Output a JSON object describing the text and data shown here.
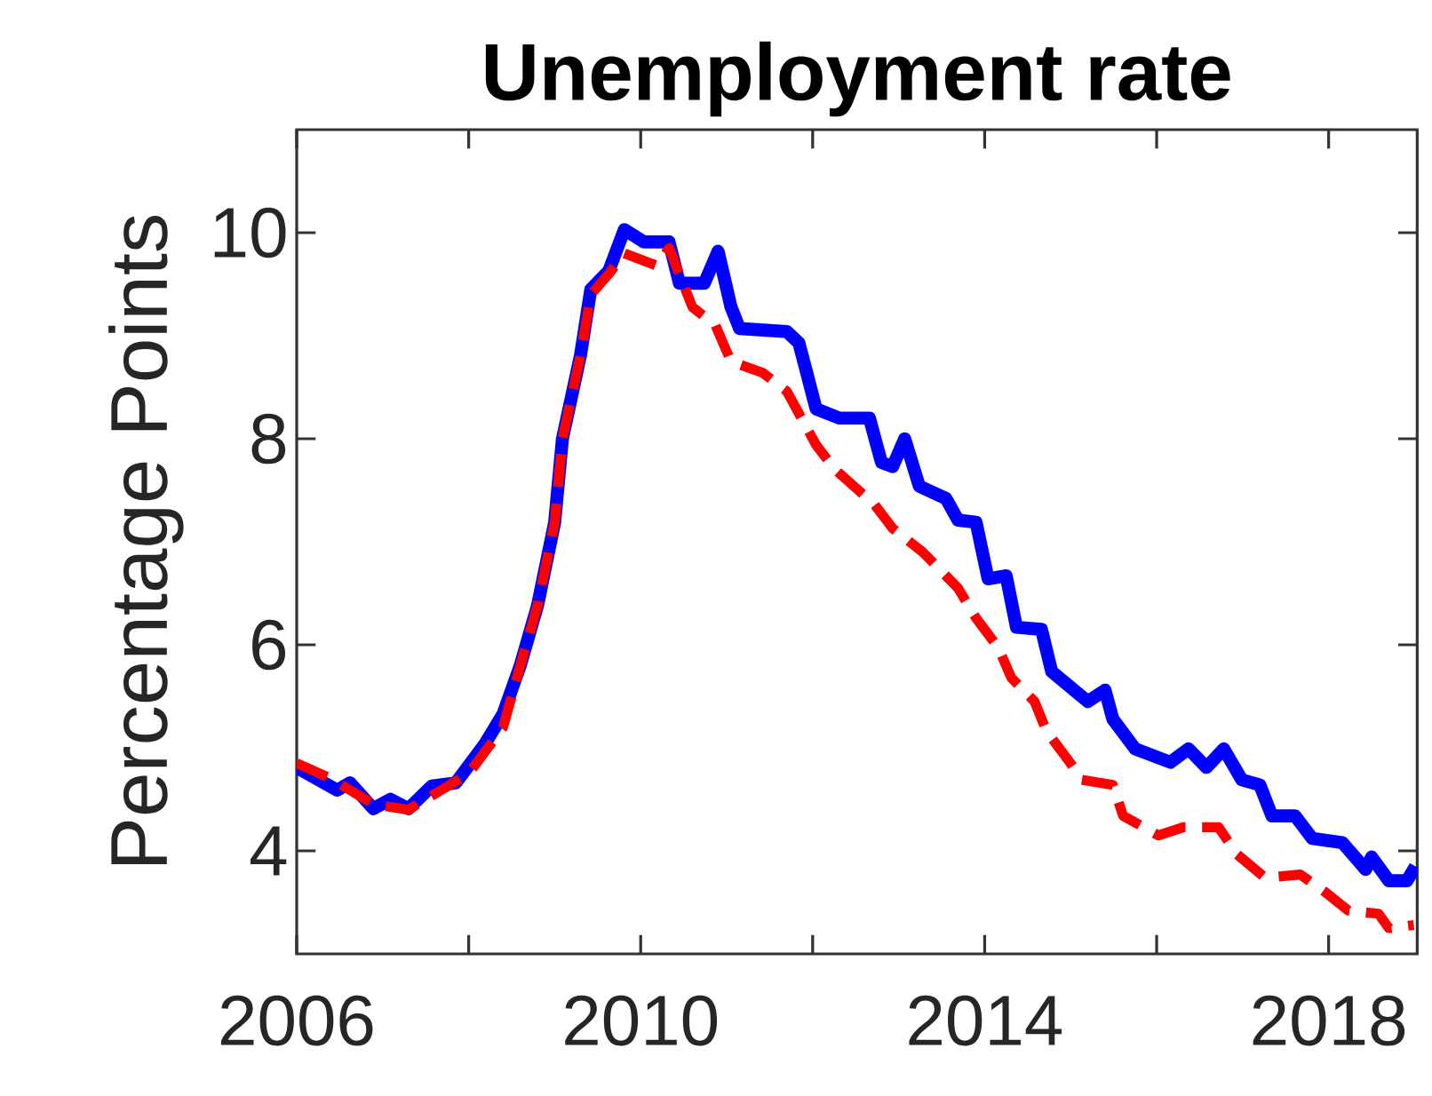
{
  "chart_data": {
    "type": "line",
    "title": "Unemployment rate",
    "ylabel": "Percentage Points",
    "xlim": [
      2006,
      2019.03
    ],
    "ylim": [
      3,
      11
    ],
    "xticks": [
      2006,
      {
        "value": 2008,
        "label": null
      },
      2010,
      {
        "value": 2012,
        "label": null
      },
      2014,
      {
        "value": 2016,
        "label": null
      },
      2018
    ],
    "yticks": [
      4,
      6,
      8,
      10
    ],
    "series": [
      {
        "color": "#0000ff",
        "line_style": "solid",
        "x": [
          2006,
          2006.47,
          2006.62,
          2006.89,
          2007.09,
          2007.3,
          2007.57,
          2007.85,
          2008.19,
          2008.4,
          2008.6,
          2008.8,
          2009.0,
          2009.09,
          2009.3,
          2009.42,
          2009.63,
          2009.81,
          2010.04,
          2010.33,
          2010.45,
          2010.74,
          2010.9,
          2011.05,
          2011.15,
          2011.7,
          2011.84,
          2012.04,
          2012.31,
          2012.66,
          2012.8,
          2012.93,
          2013.07,
          2013.24,
          2013.55,
          2013.69,
          2013.9,
          2014.04,
          2014.25,
          2014.37,
          2014.66,
          2014.78,
          2015.2,
          2015.4,
          2015.49,
          2015.75,
          2016.16,
          2016.37,
          2016.58,
          2016.78,
          2016.99,
          2017.2,
          2017.34,
          2017.61,
          2017.81,
          2018.16,
          2018.43,
          2018.5,
          2018.7,
          2018.91,
          2019.01
        ],
        "values": [
          4.81,
          4.59,
          4.66,
          4.41,
          4.5,
          4.41,
          4.63,
          4.66,
          5.04,
          5.33,
          5.8,
          6.38,
          7.19,
          8.0,
          8.81,
          9.45,
          9.63,
          10.03,
          9.91,
          9.91,
          9.51,
          9.51,
          9.82,
          9.28,
          9.07,
          9.04,
          8.93,
          8.29,
          8.2,
          8.2,
          7.77,
          7.73,
          8.0,
          7.54,
          7.42,
          7.21,
          7.19,
          6.64,
          6.67,
          6.17,
          6.15,
          5.74,
          5.45,
          5.56,
          5.28,
          4.99,
          4.86,
          4.99,
          4.81,
          4.99,
          4.69,
          4.64,
          4.34,
          4.34,
          4.12,
          4.08,
          3.82,
          3.94,
          3.71,
          3.71,
          3.85
        ]
      },
      {
        "color": "#ff0000",
        "line_style": "dashed",
        "x": [
          2006,
          2006.4,
          2006.9,
          2007.3,
          2007.6,
          2008.0,
          2008.4,
          2008.6,
          2008.8,
          2009.0,
          2009.09,
          2009.3,
          2009.42,
          2009.63,
          2009.81,
          2010.19,
          2010.33,
          2010.6,
          2010.87,
          2011.05,
          2011.42,
          2011.7,
          2012.04,
          2012.25,
          2012.72,
          2012.93,
          2013.28,
          2013.69,
          2013.9,
          2014.16,
          2014.31,
          2014.58,
          2014.72,
          2014.99,
          2015.13,
          2015.49,
          2015.61,
          2016.02,
          2016.31,
          2016.72,
          2016.93,
          2017.26,
          2017.67,
          2017.96,
          2018.23,
          2018.58,
          2018.7,
          2018.99
        ],
        "values": [
          4.85,
          4.7,
          4.45,
          4.4,
          4.55,
          4.75,
          5.2,
          5.8,
          6.38,
          7.19,
          8.0,
          8.81,
          9.4,
          9.6,
          9.8,
          9.68,
          9.85,
          9.28,
          9.1,
          8.75,
          8.64,
          8.46,
          7.94,
          7.71,
          7.36,
          7.13,
          6.9,
          6.55,
          6.26,
          5.97,
          5.68,
          5.45,
          5.16,
          4.86,
          4.69,
          4.64,
          4.34,
          4.15,
          4.23,
          4.23,
          3.97,
          3.74,
          3.77,
          3.6,
          3.42,
          3.39,
          3.25,
          3.28
        ]
      }
    ]
  }
}
